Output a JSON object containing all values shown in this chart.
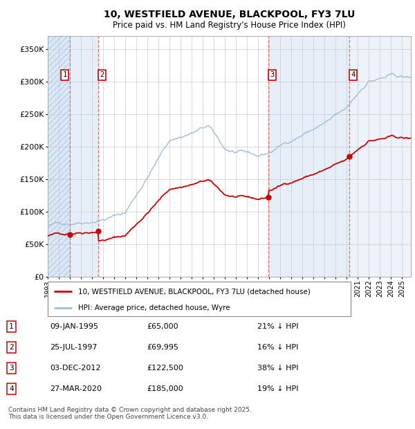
{
  "title_line1": "10, WESTFIELD AVENUE, BLACKPOOL, FY3 7LU",
  "title_line2": "Price paid vs. HM Land Registry's House Price Index (HPI)",
  "legend_line1": "10, WESTFIELD AVENUE, BLACKPOOL, FY3 7LU (detached house)",
  "legend_line2": "HPI: Average price, detached house, Wyre",
  "footer": "Contains HM Land Registry data © Crown copyright and database right 2025.\nThis data is licensed under the Open Government Licence v3.0.",
  "hpi_color": "#a0bcd8",
  "price_color": "#cc0000",
  "background_color": "#ffffff",
  "shade_color": "#ddeeff",
  "grid_color": "#cccccc",
  "purchases": [
    {
      "num": 1,
      "date_num": 1995.03,
      "price": 65000,
      "label": "09-JAN-1995",
      "pct": "21% ↓ HPI"
    },
    {
      "num": 2,
      "date_num": 1997.56,
      "price": 69995,
      "label": "25-JUL-1997",
      "pct": "16% ↓ HPI"
    },
    {
      "num": 3,
      "date_num": 2012.92,
      "price": 122500,
      "label": "03-DEC-2012",
      "pct": "38% ↓ HPI"
    },
    {
      "num": 4,
      "date_num": 2020.23,
      "price": 185000,
      "label": "27-MAR-2020",
      "pct": "19% ↓ HPI"
    }
  ],
  "ylim": [
    0,
    370000
  ],
  "yticks": [
    0,
    50000,
    100000,
    150000,
    200000,
    250000,
    300000,
    350000
  ],
  "xlim_start": 1993.0,
  "xlim_end": 2025.8,
  "xtick_years": [
    1993,
    1994,
    1995,
    1996,
    1997,
    1998,
    1999,
    2000,
    2001,
    2002,
    2003,
    2004,
    2005,
    2006,
    2007,
    2008,
    2009,
    2010,
    2011,
    2012,
    2013,
    2014,
    2015,
    2016,
    2017,
    2018,
    2019,
    2020,
    2021,
    2022,
    2023,
    2024,
    2025
  ]
}
